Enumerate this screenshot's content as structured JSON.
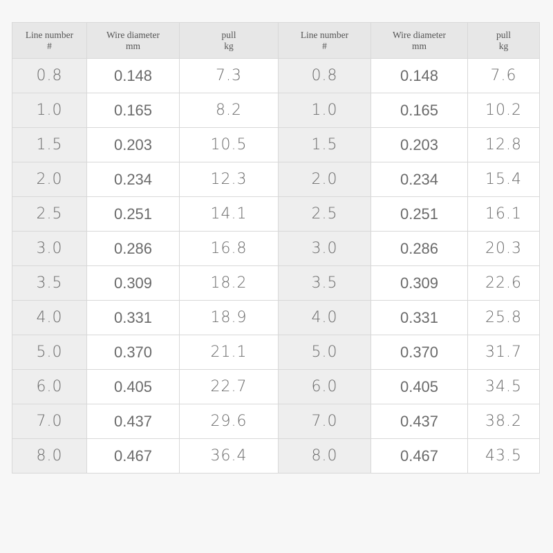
{
  "table": {
    "headers": [
      {
        "line1": "Line number",
        "line2": "#"
      },
      {
        "line1": "Wire diameter",
        "line2": "mm"
      },
      {
        "line1": "pull",
        "line2": "kg"
      },
      {
        "line1": "Line number",
        "line2": "#"
      },
      {
        "line1": "Wire diameter",
        "line2": "mm"
      },
      {
        "line1": "pull",
        "line2": "kg"
      }
    ],
    "rows": [
      [
        "0.8",
        "0.148",
        "7.3",
        "0.8",
        "0.148",
        "7.6"
      ],
      [
        "1.0",
        "0.165",
        "8.2",
        "1.0",
        "0.165",
        "10.2"
      ],
      [
        "1.5",
        "0.203",
        "10.5",
        "1.5",
        "0.203",
        "12.8"
      ],
      [
        "2.0",
        "0.234",
        "12.3",
        "2.0",
        "0.234",
        "15.4"
      ],
      [
        "2.5",
        "0.251",
        "14.1",
        "2.5",
        "0.251",
        "16.1"
      ],
      [
        "3.0",
        "0.286",
        "16.8",
        "3.0",
        "0.286",
        "20.3"
      ],
      [
        "3.5",
        "0.309",
        "18.2",
        "3.5",
        "0.309",
        "22.6"
      ],
      [
        "4.0",
        "0.331",
        "18.9",
        "4.0",
        "0.331",
        "25.8"
      ],
      [
        "5.0",
        "0.370",
        "21.1",
        "5.0",
        "0.370",
        "31.7"
      ],
      [
        "6.0",
        "0.405",
        "22.7",
        "6.0",
        "0.405",
        "34.5"
      ],
      [
        "7.0",
        "0.437",
        "29.6",
        "7.0",
        "0.437",
        "38.2"
      ],
      [
        "8.0",
        "0.467",
        "36.4",
        "8.0",
        "0.467",
        "43.5"
      ]
    ]
  },
  "colors": {
    "header_bg": "#e7e7e7",
    "number_col_bg": "#eeeeee",
    "cell_bg": "#ffffff",
    "border": "#d8d8d8",
    "text": "#6a6a6a",
    "page_bg": "#f7f7f7"
  }
}
